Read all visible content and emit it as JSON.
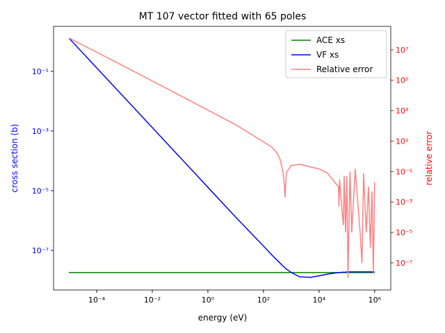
{
  "chart_data": {
    "type": "line",
    "title": "MT 107 vector fitted with 65 poles",
    "x_label": "energy (eV)",
    "y_label": "cross section (b)",
    "y2_label": "relative error",
    "log_x": true,
    "log_y": true,
    "log_y2": true,
    "xlim": [
      2.8e-06,
      3800000.0
    ],
    "ylim": [
      4.7e-09,
      3.2
    ],
    "y2lim": [
      1.65e-09,
      350000000.0
    ],
    "xticks": [
      {
        "value": 0.0001,
        "label": "10⁻⁴"
      },
      {
        "value": 0.01,
        "label": "10⁻²"
      },
      {
        "value": 1,
        "label": "10⁰"
      },
      {
        "value": 100,
        "label": "10²"
      },
      {
        "value": 10000,
        "label": "10⁴"
      },
      {
        "value": 1000000,
        "label": "10⁶"
      }
    ],
    "yticks": [
      {
        "value": 1e-07,
        "label": "10⁻⁷"
      },
      {
        "value": 1e-05,
        "label": "10⁻⁵"
      },
      {
        "value": 0.001,
        "label": "10⁻³"
      },
      {
        "value": 0.1,
        "label": "10⁻¹"
      }
    ],
    "y2ticks": [
      {
        "value": 1e-07,
        "label": "10⁻⁷"
      },
      {
        "value": 1e-05,
        "label": "10⁻⁵"
      },
      {
        "value": 0.001,
        "label": "10⁻³"
      },
      {
        "value": 0.1,
        "label": "10⁻¹"
      },
      {
        "value": 10,
        "label": "10¹"
      },
      {
        "value": 1000,
        "label": "10³"
      },
      {
        "value": 100000,
        "label": "10⁵"
      },
      {
        "value": 10000000,
        "label": "10⁷"
      }
    ],
    "y_color": "#0000ff",
    "y2_color": "#ff0000",
    "legend": "upper right",
    "x": [
      1e-05,
      0.0001,
      0.001,
      0.01,
      0.1,
      1,
      10,
      100,
      200,
      300,
      400,
      500,
      550,
      600,
      650,
      700,
      1000,
      2000,
      5000,
      10000,
      20000,
      50000,
      52000,
      55000,
      70000,
      75000,
      80000,
      90000,
      100000,
      110000,
      130000,
      150000,
      200000,
      300000,
      350000,
      400000,
      500000,
      600000,
      700000,
      800000,
      900000,
      1000000
    ],
    "series": [
      {
        "name": "ACE xs",
        "color": "#008000",
        "values": [
          1.8e-08,
          1.8e-08,
          1.8e-08,
          1.8e-08,
          1.8e-08,
          1.8e-08,
          1.8e-08,
          1.8e-08,
          1.8e-08,
          1.8e-08,
          1.8e-08,
          1.8e-08,
          1.8e-08,
          1.8e-08,
          1.8e-08,
          1.8e-08,
          1.8e-08,
          1.8e-08,
          1.8e-08,
          1.8e-08,
          1.8e-08,
          1.8e-08,
          1.8e-08,
          1.8e-08,
          1.8e-08,
          1.8e-08,
          1.8e-08,
          1.8e-08,
          1.8e-08,
          1.8e-08,
          1.8e-08,
          1.8e-08,
          1.8e-08,
          1.8e-08,
          1.8e-08,
          1.8e-08,
          1.8e-08,
          1.8e-08,
          1.8e-08,
          1.8e-08,
          1.8e-08,
          1.8e-08
        ]
      },
      {
        "name": "VF xs",
        "color": "#0000ff",
        "values": [
          1.3,
          0.13,
          0.013,
          0.0013,
          0.00013,
          1.3e-05,
          1.3e-06,
          1.4e-07,
          7e-08,
          4.8e-08,
          3.7e-08,
          3e-08,
          2.8e-08,
          2.6e-08,
          2.4e-08,
          2.3e-08,
          1.8e-08,
          1.3e-08,
          1.25e-08,
          1.4e-08,
          1.6e-08,
          1.8e-08,
          1.8e-08,
          1.8e-08,
          1.85e-08,
          1.85e-08,
          1.85e-08,
          1.85e-08,
          1.9e-08,
          1.9e-08,
          1.9e-08,
          1.9e-08,
          1.9e-08,
          1.9e-08,
          1.9e-08,
          1.9e-08,
          1.9e-08,
          1.9e-08,
          1.9e-08,
          1.9e-08,
          1.9e-08,
          1.9e-08
        ]
      },
      {
        "name": "Relative error",
        "color": "#ff8080",
        "axis": "y2",
        "values": [
          60000000.0,
          7000000.0,
          800000.0,
          90000.0,
          10000.0,
          1100,
          120,
          9,
          4,
          1.8,
          0.6,
          0.1,
          0.02,
          0.002,
          0.05,
          0.1,
          0.25,
          0.3,
          0.2,
          0.15,
          0.08,
          0.01,
          0.0005,
          0.03,
          0.0001,
          3e-05,
          0.05,
          1e-05,
          0.05,
          1e-08,
          0.1,
          1e-05,
          0.15,
          1e-05,
          1e-07,
          0.08,
          1e-05,
          0.01,
          1e-06,
          0.005,
          2e-08,
          0.02
        ]
      }
    ]
  }
}
